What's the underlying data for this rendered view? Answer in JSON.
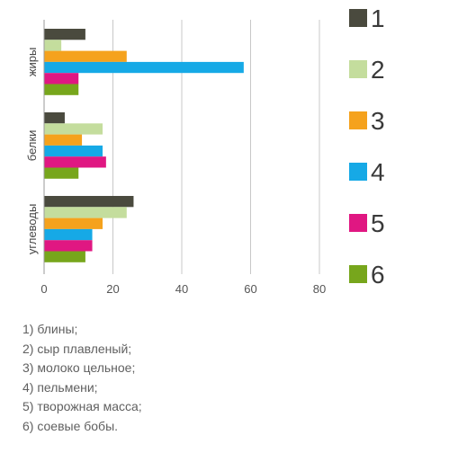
{
  "chart_data": {
    "type": "bar",
    "orientation": "horizontal",
    "categories": [
      "жиры",
      "белки",
      "углеводы"
    ],
    "series": [
      {
        "name": "1",
        "color": "#4a4a3e",
        "values": [
          12,
          6,
          26
        ]
      },
      {
        "name": "2",
        "color": "#c4dd9d",
        "values": [
          5,
          17,
          24
        ]
      },
      {
        "name": "3",
        "color": "#f5a21d",
        "values": [
          24,
          11,
          17
        ]
      },
      {
        "name": "4",
        "color": "#16a9e6",
        "values": [
          58,
          17,
          14
        ]
      },
      {
        "name": "5",
        "color": "#e01782",
        "values": [
          10,
          18,
          14
        ]
      },
      {
        "name": "6",
        "color": "#77a61c",
        "values": [
          10,
          10,
          12
        ]
      }
    ],
    "xlim": [
      0,
      80
    ],
    "xticks": [
      "0",
      "20",
      "40",
      "60",
      "80"
    ],
    "grid": true,
    "legend": "right"
  },
  "footnotes": [
    "1) блины;",
    "2) сыр плавленый;",
    "3) молоко цельное;",
    "4) пельмени;",
    "5) творожная масса;",
    "6) соевые бобы."
  ]
}
